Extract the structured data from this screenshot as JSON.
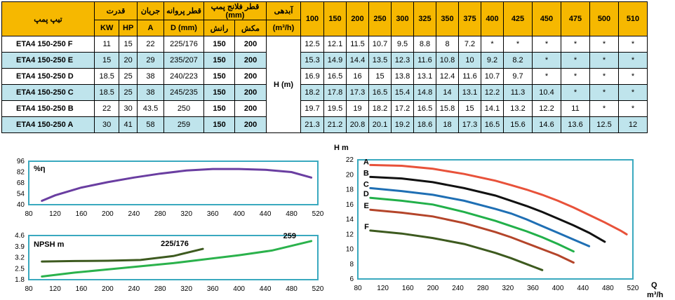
{
  "table": {
    "headers": {
      "model": "تیپ پمپ",
      "power": "قدرت",
      "kw": "KW",
      "hp": "HP",
      "current": "جریان",
      "amp": "A",
      "impeller": "قطر پروانه",
      "impeller_unit": "D (mm)",
      "flange": "قطر فلانج پمپ (mm)",
      "discharge": "رانش",
      "suction": "مکش",
      "flow": "آبدهی",
      "flow_unit": "(m³/h)",
      "head": "H (m)"
    },
    "flows": [
      "100",
      "150",
      "200",
      "250",
      "300",
      "325",
      "350",
      "375",
      "400",
      "425",
      "450",
      "475",
      "500",
      "510"
    ],
    "rows": [
      {
        "model": "ETA4 150-250 F",
        "kw": "11",
        "hp": "15",
        "a": "22",
        "d": "225/176",
        "dis": "150",
        "suc": "200",
        "h": [
          "12.5",
          "12.1",
          "11.5",
          "10.7",
          "9.5",
          "8.8",
          "8",
          "7.2",
          "*",
          "*",
          "*",
          "*",
          "*",
          "*"
        ]
      },
      {
        "model": "ETA4 150-250 E",
        "kw": "15",
        "hp": "20",
        "a": "29",
        "d": "235/207",
        "dis": "150",
        "suc": "200",
        "h": [
          "15.3",
          "14.9",
          "14.4",
          "13.5",
          "12.3",
          "11.6",
          "10.8",
          "10",
          "9.2",
          "8.2",
          "*",
          "*",
          "*",
          "*"
        ]
      },
      {
        "model": "ETA4 150-250 D",
        "kw": "18.5",
        "hp": "25",
        "a": "38",
        "d": "240/223",
        "dis": "150",
        "suc": "200",
        "h": [
          "16.9",
          "16.5",
          "16",
          "15",
          "13.8",
          "13.1",
          "12.4",
          "11.6",
          "10.7",
          "9.7",
          "*",
          "*",
          "*",
          "*"
        ]
      },
      {
        "model": "ETA4 150-250 C",
        "kw": "18.5",
        "hp": "25",
        "a": "38",
        "d": "245/235",
        "dis": "150",
        "suc": "200",
        "h": [
          "18.2",
          "17.8",
          "17.3",
          "16.5",
          "15.4",
          "14.8",
          "14",
          "13.1",
          "12.2",
          "11.3",
          "10.4",
          "*",
          "*",
          "*"
        ]
      },
      {
        "model": "ETA4 150-250 B",
        "kw": "22",
        "hp": "30",
        "a": "43.5",
        "d": "250",
        "dis": "150",
        "suc": "200",
        "h": [
          "19.7",
          "19.5",
          "19",
          "18.2",
          "17.2",
          "16.5",
          "15.8",
          "15",
          "14.1",
          "13.2",
          "12.2",
          "11",
          "*",
          "*"
        ]
      },
      {
        "model": "ETA4 150-250 A",
        "kw": "30",
        "hp": "41",
        "a": "58",
        "d": "259",
        "dis": "150",
        "suc": "200",
        "h": [
          "21.3",
          "21.2",
          "20.8",
          "20.1",
          "19.2",
          "18.6",
          "18",
          "17.3",
          "16.5",
          "15.6",
          "14.6",
          "13.6",
          "12.5",
          "12"
        ]
      }
    ]
  },
  "chart_data": [
    {
      "type": "line",
      "title": "",
      "ylabel": "%η",
      "x_ticks": [
        "80",
        "120",
        "160",
        "200",
        "240",
        "280",
        "320",
        "360",
        "400",
        "440",
        "480",
        "520"
      ],
      "y_ticks": [
        "40",
        "54",
        "68",
        "82",
        "96"
      ],
      "xlim": [
        80,
        520
      ],
      "ylim": [
        40,
        96
      ],
      "series": [
        {
          "color": "#6a3ea1",
          "x": [
            100,
            120,
            160,
            200,
            240,
            280,
            320,
            360,
            400,
            440,
            480,
            510
          ],
          "values": [
            45,
            52,
            62,
            69,
            75,
            80,
            84,
            86,
            86,
            85,
            82,
            75
          ]
        }
      ]
    },
    {
      "type": "line",
      "ylabel": "NPSH m",
      "x_ticks": [
        "80",
        "120",
        "160",
        "200",
        "240",
        "280",
        "320",
        "360",
        "400",
        "440",
        "480",
        "520"
      ],
      "y_ticks": [
        "1.8",
        "2.5",
        "3.2",
        "3.9",
        "4.6"
      ],
      "xlim": [
        80,
        520
      ],
      "ylim": [
        1.8,
        4.6
      ],
      "series": [
        {
          "name": "225/176",
          "color": "#3d5a1f",
          "x": [
            100,
            150,
            200,
            250,
            300,
            345
          ],
          "values": [
            2.95,
            2.98,
            3.0,
            3.05,
            3.3,
            3.75
          ]
        },
        {
          "name": "259",
          "color": "#2bb24c",
          "x": [
            100,
            150,
            200,
            250,
            300,
            350,
            400,
            450,
            510
          ],
          "values": [
            2.0,
            2.25,
            2.45,
            2.65,
            2.85,
            3.1,
            3.35,
            3.65,
            4.25
          ]
        }
      ]
    },
    {
      "type": "line",
      "ylabel": "H m",
      "xlabel": "Q m³/h",
      "x_ticks": [
        "80",
        "120",
        "160",
        "200",
        "240",
        "280",
        "320",
        "360",
        "400",
        "440",
        "480",
        "520"
      ],
      "y_ticks": [
        "6",
        "8",
        "10",
        "12",
        "14",
        "16",
        "18",
        "20",
        "22"
      ],
      "xlim": [
        80,
        520
      ],
      "ylim": [
        6,
        22
      ],
      "series": [
        {
          "name": "A",
          "color": "#e8523a",
          "x": [
            100,
            150,
            200,
            250,
            300,
            325,
            350,
            375,
            400,
            425,
            450,
            475,
            500,
            510
          ],
          "values": [
            21.3,
            21.2,
            20.8,
            20.1,
            19.2,
            18.6,
            18,
            17.3,
            16.5,
            15.6,
            14.6,
            13.6,
            12.5,
            12
          ]
        },
        {
          "name": "B",
          "color": "#111111",
          "x": [
            100,
            150,
            200,
            250,
            300,
            325,
            350,
            375,
            400,
            425,
            450,
            475
          ],
          "values": [
            19.7,
            19.5,
            19,
            18.2,
            17.2,
            16.5,
            15.8,
            15,
            14.1,
            13.2,
            12.2,
            11
          ]
        },
        {
          "name": "C",
          "color": "#1f6fb4",
          "x": [
            100,
            150,
            200,
            250,
            300,
            325,
            350,
            375,
            400,
            425,
            450
          ],
          "values": [
            18.2,
            17.8,
            17.3,
            16.5,
            15.4,
            14.8,
            14,
            13.1,
            12.2,
            11.3,
            10.4
          ]
        },
        {
          "name": "D",
          "color": "#22b04a",
          "x": [
            100,
            150,
            200,
            250,
            300,
            325,
            350,
            375,
            400,
            425
          ],
          "values": [
            16.9,
            16.5,
            16,
            15,
            13.8,
            13.1,
            12.4,
            11.6,
            10.7,
            9.7
          ]
        },
        {
          "name": "E",
          "color": "#b4452a",
          "x": [
            100,
            150,
            200,
            250,
            300,
            325,
            350,
            375,
            400,
            425
          ],
          "values": [
            15.3,
            14.9,
            14.4,
            13.5,
            12.3,
            11.6,
            10.8,
            10,
            9.2,
            8.2
          ]
        },
        {
          "name": "F",
          "color": "#3d5a1f",
          "x": [
            100,
            150,
            200,
            250,
            300,
            325,
            350,
            375
          ],
          "values": [
            12.5,
            12.1,
            11.5,
            10.7,
            9.5,
            8.8,
            8,
            7.2
          ]
        }
      ]
    }
  ]
}
